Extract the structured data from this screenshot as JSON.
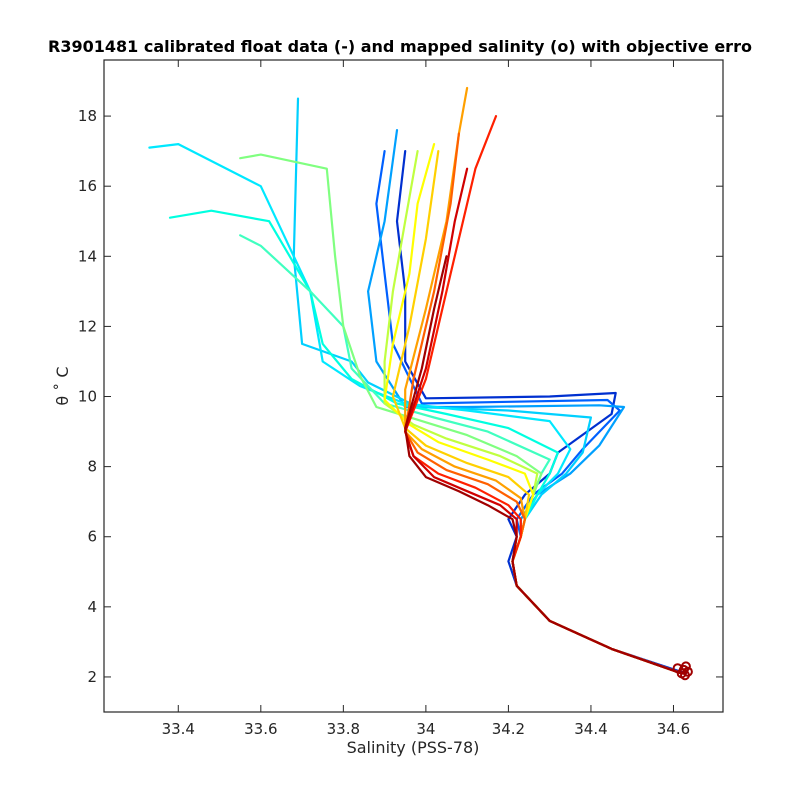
{
  "chart_data": {
    "type": "line",
    "title": "R3901481 calibrated float data (-) and mapped salinity (o) with objective erro",
    "xlabel": "Salinity (PSS-78)",
    "ylabel": "θ ˚ C",
    "xlim": [
      33.22,
      34.72
    ],
    "ylim": [
      1.0,
      19.6
    ],
    "xticks": [
      "33.4",
      "33.6",
      "33.8",
      "34",
      "34.2",
      "34.4",
      "34.6"
    ],
    "yticks": [
      "2",
      "4",
      "6",
      "8",
      "10",
      "12",
      "14",
      "16",
      "18"
    ],
    "xtick_values": [
      33.4,
      33.6,
      33.8,
      34.0,
      34.2,
      34.4,
      34.6
    ],
    "ytick_values": [
      2,
      4,
      6,
      8,
      10,
      12,
      14,
      16,
      18
    ],
    "grid": false,
    "colormap": "jet (blue = early profiles, dark red = late profiles)",
    "colors": [
      "#0000a0",
      "#0040ff",
      "#00c0ff",
      "#00ffe0",
      "#80ff80",
      "#ffff00",
      "#ffa000",
      "#ff2000",
      "#a00000"
    ],
    "series": [
      {
        "color": "#0030d0",
        "x": [
          34.63,
          34.45,
          34.3,
          34.22,
          34.2,
          34.22,
          34.2,
          34.24,
          34.3,
          34.32,
          34.45,
          34.46,
          34.3,
          34.0,
          33.95,
          33.95,
          33.93,
          33.95
        ],
        "y": [
          2.1,
          2.8,
          3.6,
          4.6,
          5.3,
          6.0,
          6.5,
          7.2,
          7.8,
          8.4,
          9.5,
          10.1,
          10.0,
          9.95,
          11.0,
          13.0,
          15.0,
          17.0
        ]
      },
      {
        "color": "#0060ff",
        "x": [
          34.62,
          34.45,
          34.3,
          34.22,
          34.21,
          34.23,
          34.22,
          34.26,
          34.33,
          34.38,
          34.47,
          34.44,
          34.2,
          33.99,
          33.92,
          33.9,
          33.88,
          33.9
        ],
        "y": [
          2.1,
          2.8,
          3.6,
          4.6,
          5.3,
          6.0,
          6.5,
          7.2,
          7.8,
          8.5,
          9.6,
          9.9,
          9.85,
          9.8,
          11.5,
          13.5,
          15.5,
          17.0
        ]
      },
      {
        "color": "#00a0ff",
        "x": [
          34.62,
          34.45,
          34.3,
          34.22,
          34.21,
          34.23,
          34.23,
          34.27,
          34.35,
          34.42,
          34.48,
          34.42,
          34.1,
          33.95,
          33.88,
          33.86,
          33.9,
          33.93
        ],
        "y": [
          2.1,
          2.8,
          3.6,
          4.6,
          5.3,
          6.0,
          6.5,
          7.2,
          7.8,
          8.6,
          9.7,
          9.75,
          9.7,
          9.7,
          11.0,
          13.0,
          15.0,
          17.6
        ]
      },
      {
        "color": "#00d0ff",
        "x": [
          34.62,
          34.45,
          34.3,
          34.22,
          34.21,
          34.23,
          34.24,
          34.28,
          34.34,
          34.38,
          34.4,
          34.2,
          33.98,
          33.86,
          33.82,
          33.7,
          33.68,
          33.69
        ],
        "y": [
          2.1,
          2.8,
          3.6,
          4.6,
          5.3,
          6.0,
          6.5,
          7.2,
          7.8,
          8.4,
          9.4,
          9.6,
          9.7,
          10.4,
          11.0,
          11.5,
          14.0,
          18.5
        ]
      },
      {
        "color": "#00e8ff",
        "x": [
          34.62,
          34.45,
          34.3,
          34.22,
          34.21,
          34.23,
          34.24,
          34.27,
          34.32,
          34.35,
          34.3,
          34.1,
          33.95,
          33.84,
          33.75,
          33.72,
          33.6,
          33.4,
          33.33
        ],
        "y": [
          2.1,
          2.8,
          3.6,
          4.6,
          5.3,
          6.0,
          6.5,
          7.2,
          7.8,
          8.5,
          9.3,
          9.6,
          9.8,
          10.3,
          11.0,
          13.0,
          16.0,
          17.2,
          17.1
        ]
      },
      {
        "color": "#00ffe0",
        "x": [
          34.62,
          34.45,
          34.3,
          34.22,
          34.21,
          34.23,
          34.24,
          34.27,
          34.3,
          34.32,
          34.2,
          34.05,
          33.93,
          33.82,
          33.75,
          33.72,
          33.62,
          33.48,
          33.38
        ],
        "y": [
          2.1,
          2.8,
          3.6,
          4.6,
          5.3,
          6.0,
          6.5,
          7.2,
          7.8,
          8.4,
          9.1,
          9.5,
          9.8,
          10.5,
          11.5,
          13.0,
          15.0,
          15.3,
          15.1
        ]
      },
      {
        "color": "#40ffc0",
        "x": [
          34.62,
          34.45,
          34.3,
          34.22,
          34.21,
          34.23,
          34.24,
          34.26,
          34.28,
          34.3,
          34.15,
          34.02,
          33.9,
          33.82,
          33.8,
          33.72,
          33.6,
          33.55
        ],
        "y": [
          2.1,
          2.8,
          3.6,
          4.6,
          5.3,
          6.0,
          6.5,
          7.2,
          7.8,
          8.2,
          9.0,
          9.4,
          9.8,
          10.8,
          12.0,
          13.0,
          14.3,
          14.6
        ]
      },
      {
        "color": "#80ff80",
        "x": [
          34.62,
          34.45,
          34.3,
          34.22,
          34.21,
          34.23,
          34.24,
          34.26,
          34.28,
          34.22,
          34.1,
          33.99,
          33.88,
          33.84,
          33.8,
          33.78,
          33.76,
          33.6,
          33.55
        ],
        "y": [
          2.1,
          2.8,
          3.6,
          4.6,
          5.3,
          6.0,
          6.5,
          7.2,
          7.8,
          8.3,
          8.9,
          9.3,
          9.7,
          10.6,
          12.0,
          14.0,
          16.5,
          16.9,
          16.8
        ]
      },
      {
        "color": "#c0ff40",
        "x": [
          34.62,
          34.45,
          34.3,
          34.22,
          34.21,
          34.23,
          34.24,
          34.26,
          34.27,
          34.18,
          34.05,
          33.97,
          33.9,
          33.9,
          33.92,
          33.95,
          33.98
        ],
        "y": [
          2.1,
          2.8,
          3.6,
          4.6,
          5.3,
          6.0,
          6.5,
          7.2,
          7.8,
          8.3,
          8.8,
          9.2,
          9.8,
          11.0,
          13.0,
          15.0,
          17.0
        ]
      },
      {
        "color": "#ffff00",
        "x": [
          34.62,
          34.45,
          34.3,
          34.22,
          34.21,
          34.23,
          34.24,
          34.26,
          34.24,
          34.15,
          34.03,
          33.96,
          33.9,
          33.92,
          33.96,
          33.98,
          34.02
        ],
        "y": [
          2.1,
          2.8,
          3.6,
          4.6,
          5.3,
          6.0,
          6.5,
          7.2,
          7.8,
          8.2,
          8.7,
          9.2,
          9.9,
          11.5,
          13.5,
          15.5,
          17.2
        ]
      },
      {
        "color": "#ffd000",
        "x": [
          34.62,
          34.45,
          34.3,
          34.22,
          34.21,
          34.23,
          34.24,
          34.25,
          34.2,
          34.1,
          34.0,
          33.95,
          33.92,
          33.96,
          34.0,
          34.03
        ],
        "y": [
          2.1,
          2.8,
          3.6,
          4.6,
          5.3,
          6.0,
          6.5,
          7.2,
          7.7,
          8.1,
          8.6,
          9.1,
          10.0,
          12.0,
          14.5,
          17.0
        ]
      },
      {
        "color": "#ffa000",
        "x": [
          34.62,
          34.45,
          34.3,
          34.22,
          34.21,
          34.23,
          34.24,
          34.23,
          34.17,
          34.07,
          33.99,
          33.95,
          33.95,
          34.0,
          34.05,
          34.08,
          34.1
        ],
        "y": [
          2.1,
          2.8,
          3.6,
          4.6,
          5.3,
          6.0,
          6.5,
          7.1,
          7.6,
          8.0,
          8.5,
          9.0,
          10.2,
          12.5,
          15.0,
          17.5,
          18.8
        ]
      },
      {
        "color": "#ff6000",
        "x": [
          34.62,
          34.45,
          34.3,
          34.22,
          34.21,
          34.23,
          34.24,
          34.22,
          34.15,
          34.05,
          33.98,
          33.95,
          33.97,
          34.02,
          34.06,
          34.08
        ],
        "y": [
          2.1,
          2.8,
          3.6,
          4.6,
          5.3,
          6.0,
          6.5,
          7.0,
          7.5,
          7.9,
          8.4,
          9.0,
          10.5,
          13.0,
          15.5,
          17.5
        ]
      },
      {
        "color": "#ff2000",
        "x": [
          34.62,
          34.45,
          34.3,
          34.22,
          34.21,
          34.23,
          34.23,
          34.2,
          34.12,
          34.03,
          33.97,
          33.95,
          34.0,
          34.06,
          34.12,
          34.17
        ],
        "y": [
          2.1,
          2.8,
          3.6,
          4.6,
          5.3,
          6.0,
          6.5,
          6.9,
          7.4,
          7.8,
          8.3,
          9.0,
          10.5,
          13.5,
          16.5,
          18.0
        ]
      },
      {
        "color": "#d00000",
        "x": [
          34.62,
          34.45,
          34.3,
          34.22,
          34.21,
          34.22,
          34.22,
          34.18,
          34.1,
          34.02,
          33.97,
          33.95,
          34.0,
          34.04,
          34.07,
          34.1
        ],
        "y": [
          2.1,
          2.8,
          3.6,
          4.6,
          5.3,
          6.0,
          6.5,
          6.9,
          7.3,
          7.7,
          8.3,
          9.0,
          10.8,
          13.0,
          15.0,
          16.5
        ]
      },
      {
        "color": "#a00000",
        "x": [
          34.62,
          34.45,
          34.3,
          34.22,
          34.21,
          34.22,
          34.21,
          34.15,
          34.08,
          34.0,
          33.96,
          33.95,
          33.99,
          34.02,
          34.05
        ],
        "y": [
          2.1,
          2.8,
          3.6,
          4.6,
          5.3,
          6.0,
          6.5,
          6.9,
          7.3,
          7.7,
          8.3,
          9.1,
          10.8,
          12.5,
          14.0
        ]
      }
    ],
    "mapped_points": {
      "color": "#a00000",
      "x": [
        34.625,
        34.63,
        34.62,
        34.635,
        34.61,
        34.628
      ],
      "y": [
        2.2,
        2.3,
        2.1,
        2.15,
        2.25,
        2.05
      ]
    }
  }
}
